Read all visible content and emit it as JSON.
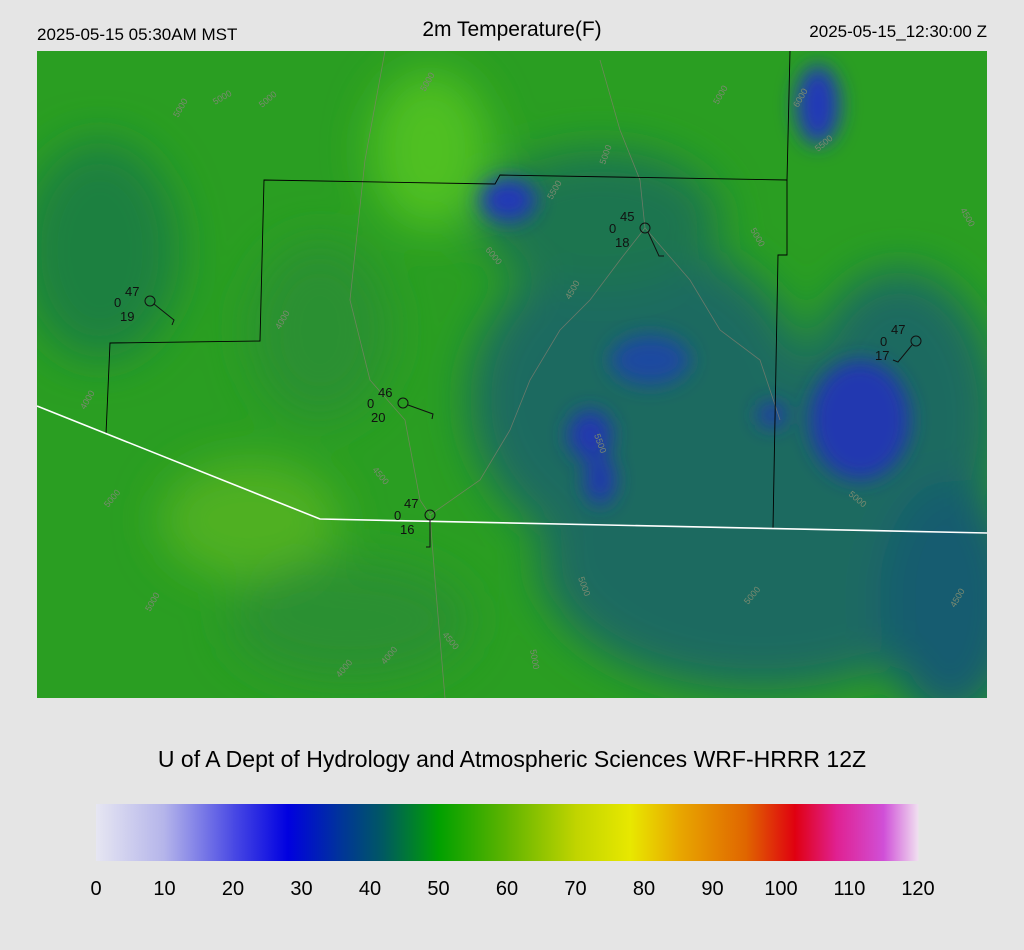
{
  "header": {
    "local_time": "2025-05-15 05:30AM MST",
    "title": "2m Temperature(F)",
    "valid_time": "2025-05-15_12:30:00 Z"
  },
  "stations": [
    {
      "temp": "47",
      "flag": "0",
      "dewpoint": "19"
    },
    {
      "temp": "46",
      "flag": "0",
      "dewpoint": "20"
    },
    {
      "temp": "45",
      "flag": "0",
      "dewpoint": "18"
    },
    {
      "temp": "47",
      "flag": "0",
      "dewpoint": "17"
    },
    {
      "temp": "47",
      "flag": "0",
      "dewpoint": "16"
    }
  ],
  "contour_labels": [
    "5000",
    "5000",
    "5000",
    "5000",
    "6000",
    "5500",
    "5000",
    "6000",
    "5000",
    "5000",
    "4500",
    "4000",
    "5500",
    "5500",
    "5000",
    "4500",
    "4000",
    "4500",
    "5000",
    "5000",
    "4500",
    "4000",
    "5000",
    "5000",
    "5000",
    "4500",
    "4000"
  ],
  "footer": "U of A Dept of Hydrology and Atmospheric Sciences WRF-HRRR 12Z",
  "colorbar": {
    "range": [
      0,
      120
    ],
    "ticks": [
      0,
      10,
      20,
      30,
      40,
      50,
      60,
      70,
      80,
      90,
      100,
      110,
      120
    ],
    "stops": [
      {
        "value": 0,
        "color": "#e6e6f2"
      },
      {
        "value": 10,
        "color": "#b4b4ea"
      },
      {
        "value": 20,
        "color": "#4a4ae4"
      },
      {
        "value": 28,
        "color": "#0000e0"
      },
      {
        "value": 35,
        "color": "#0030a0"
      },
      {
        "value": 42,
        "color": "#005a60"
      },
      {
        "value": 50,
        "color": "#00a000"
      },
      {
        "value": 60,
        "color": "#60b400"
      },
      {
        "value": 70,
        "color": "#c0d400"
      },
      {
        "value": 78,
        "color": "#e8e800"
      },
      {
        "value": 85,
        "color": "#e8a800"
      },
      {
        "value": 95,
        "color": "#e06400"
      },
      {
        "value": 102,
        "color": "#e00010"
      },
      {
        "value": 108,
        "color": "#e02090"
      },
      {
        "value": 115,
        "color": "#d050d8"
      },
      {
        "value": 120,
        "color": "#f0e0f0"
      }
    ]
  }
}
